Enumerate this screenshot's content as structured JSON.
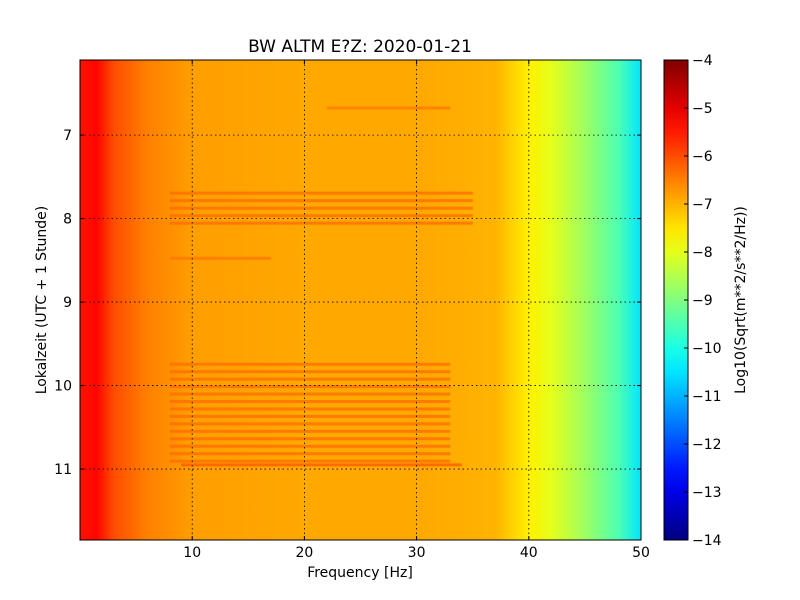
{
  "chart_data": {
    "type": "heatmap",
    "title": "BW ALTM E?Z: 2020-01-21",
    "xlabel": "Frequency [Hz]",
    "ylabel": "Lokalzeit (UTC + 1 Stunde)",
    "xlim": [
      0,
      50
    ],
    "ylim": [
      11.85,
      6.1
    ],
    "x_ticks": [
      {
        "value": 10,
        "label": "10"
      },
      {
        "value": 20,
        "label": "20"
      },
      {
        "value": 30,
        "label": "30"
      },
      {
        "value": 40,
        "label": "40"
      },
      {
        "value": 50,
        "label": "50"
      }
    ],
    "y_ticks": [
      {
        "value": 7,
        "label": "7"
      },
      {
        "value": 8,
        "label": "8"
      },
      {
        "value": 9,
        "label": "9"
      },
      {
        "value": 10,
        "label": "10"
      },
      {
        "value": 11,
        "label": "11"
      }
    ],
    "grid": true,
    "colormap": "jet",
    "colorbar": {
      "label": "Log10(Sqrt(m**2/s**2/Hz))",
      "range": [
        -14,
        -4
      ],
      "ticks": [
        {
          "value": -4,
          "label": "−4"
        },
        {
          "value": -5,
          "label": "−5"
        },
        {
          "value": -6,
          "label": "−6"
        },
        {
          "value": -7,
          "label": "−7"
        },
        {
          "value": -8,
          "label": "−8"
        },
        {
          "value": -9,
          "label": "−9"
        },
        {
          "value": -10,
          "label": "−10"
        },
        {
          "value": -11,
          "label": "−11"
        },
        {
          "value": -12,
          "label": "−12"
        },
        {
          "value": -13,
          "label": "−13"
        },
        {
          "value": -14,
          "label": "−14"
        }
      ]
    },
    "frequency_profile": [
      {
        "freq": 0.5,
        "level": -5.4
      },
      {
        "freq": 1.5,
        "level": -5.3
      },
      {
        "freq": 3,
        "level": -6.0
      },
      {
        "freq": 6,
        "level": -6.5
      },
      {
        "freq": 10,
        "level": -6.8
      },
      {
        "freq": 20,
        "level": -6.9
      },
      {
        "freq": 30,
        "level": -6.9
      },
      {
        "freq": 37,
        "level": -7.0
      },
      {
        "freq": 40,
        "level": -7.6
      },
      {
        "freq": 42,
        "level": -8.0
      },
      {
        "freq": 45,
        "level": -8.7
      },
      {
        "freq": 48,
        "level": -9.5
      },
      {
        "freq": 50,
        "level": -10.5
      }
    ],
    "bands": [
      {
        "t_start": 7.65,
        "t_end": 8.1,
        "f_start": 8,
        "f_end": 35,
        "level": -6.3
      },
      {
        "t_start": 9.7,
        "t_end": 10.95,
        "f_start": 8,
        "f_end": 33,
        "level": -6.3
      },
      {
        "t_start": 10.9,
        "t_end": 11.0,
        "f_start": 9,
        "f_end": 34,
        "level": -6.1
      },
      {
        "t_start": 6.65,
        "t_end": 6.7,
        "f_start": 22,
        "f_end": 33,
        "level": -6.4
      },
      {
        "t_start": 8.45,
        "t_end": 8.5,
        "f_start": 8,
        "f_end": 17,
        "level": -6.4
      }
    ]
  }
}
